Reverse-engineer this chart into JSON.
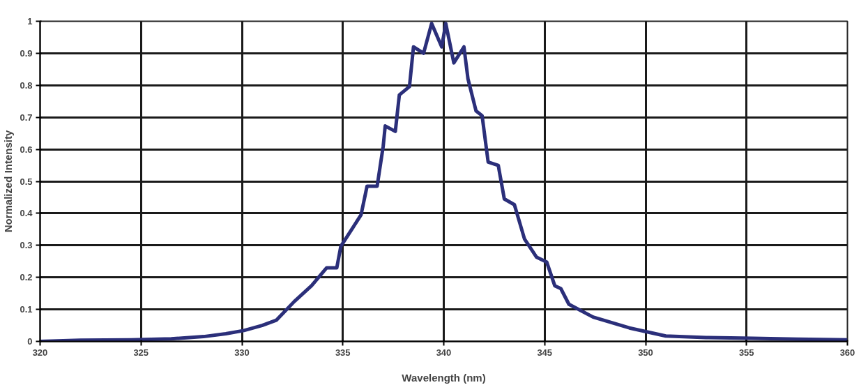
{
  "chart_data": {
    "type": "line",
    "xlabel": "Wavelength (nm)",
    "ylabel": "Normalized Intensity",
    "xlim": [
      320,
      360
    ],
    "ylim": [
      0,
      1
    ],
    "xticks": [
      320,
      325,
      330,
      335,
      340,
      345,
      350,
      355,
      360
    ],
    "yticks": [
      0,
      0.1,
      0.2,
      0.3,
      0.4,
      0.5,
      0.6,
      0.7,
      0.8,
      0.9,
      1
    ],
    "grid": true,
    "marker": "none",
    "line_style": "solid",
    "series": [
      {
        "color": "#2b2f7a",
        "x": [
          320,
          322,
          324.5,
          326.5,
          328.1,
          329.2,
          330.1,
          331.0,
          331.7,
          332.6,
          333.45,
          334.2,
          334.7,
          334.9,
          335.9,
          336.2,
          336.7,
          337.0,
          337.1,
          337.6,
          337.8,
          338.3,
          338.5,
          339.0,
          339.4,
          339.9,
          340.1,
          340.5,
          341.0,
          341.2,
          341.6,
          341.9,
          342.2,
          342.7,
          343.0,
          343.5,
          344.0,
          344.6,
          345.1,
          345.5,
          345.8,
          346.2,
          347.4,
          349.2,
          351.0,
          353.0,
          355.3,
          357.5,
          360
        ],
        "values": [
          0,
          0.004,
          0.005,
          0.008,
          0.015,
          0.024,
          0.034,
          0.05,
          0.066,
          0.125,
          0.174,
          0.23,
          0.23,
          0.297,
          0.395,
          0.485,
          0.485,
          0.61,
          0.673,
          0.656,
          0.77,
          0.796,
          0.92,
          0.9,
          0.993,
          0.92,
          0.993,
          0.87,
          0.92,
          0.82,
          0.72,
          0.705,
          0.56,
          0.55,
          0.445,
          0.427,
          0.32,
          0.263,
          0.248,
          0.174,
          0.165,
          0.116,
          0.076,
          0.042,
          0.017,
          0.012,
          0.01,
          0.007,
          0.005
        ]
      }
    ]
  }
}
